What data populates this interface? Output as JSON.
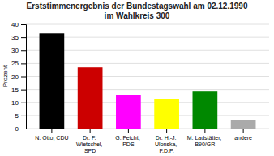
{
  "chart_data": {
    "type": "bar",
    "title": "Erststimmenergebnis der Bundestagswahl am 02.12.1990",
    "subtitle": "im Wahlkreis 300",
    "y_label": "Prozent",
    "categories": [
      "N. Otto, CDU",
      "Dr. F. Wietschel, SPD",
      "G. Feicht, PDS",
      "Dr. H.-J. Ulonska, F.D.P.",
      "M. Ladstätter, B90/GR",
      "andere"
    ],
    "values": [
      36.5,
      23.5,
      13.0,
      11.2,
      14.2,
      3.2
    ],
    "colors": [
      "#000000",
      "#cc0000",
      "#ff00ff",
      "#ffff00",
      "#008800",
      "#aaaaaa"
    ],
    "ylim": [
      0,
      40
    ],
    "yticks": [
      0,
      5,
      10,
      15,
      20,
      25,
      30,
      35,
      40
    ],
    "grid": true
  }
}
